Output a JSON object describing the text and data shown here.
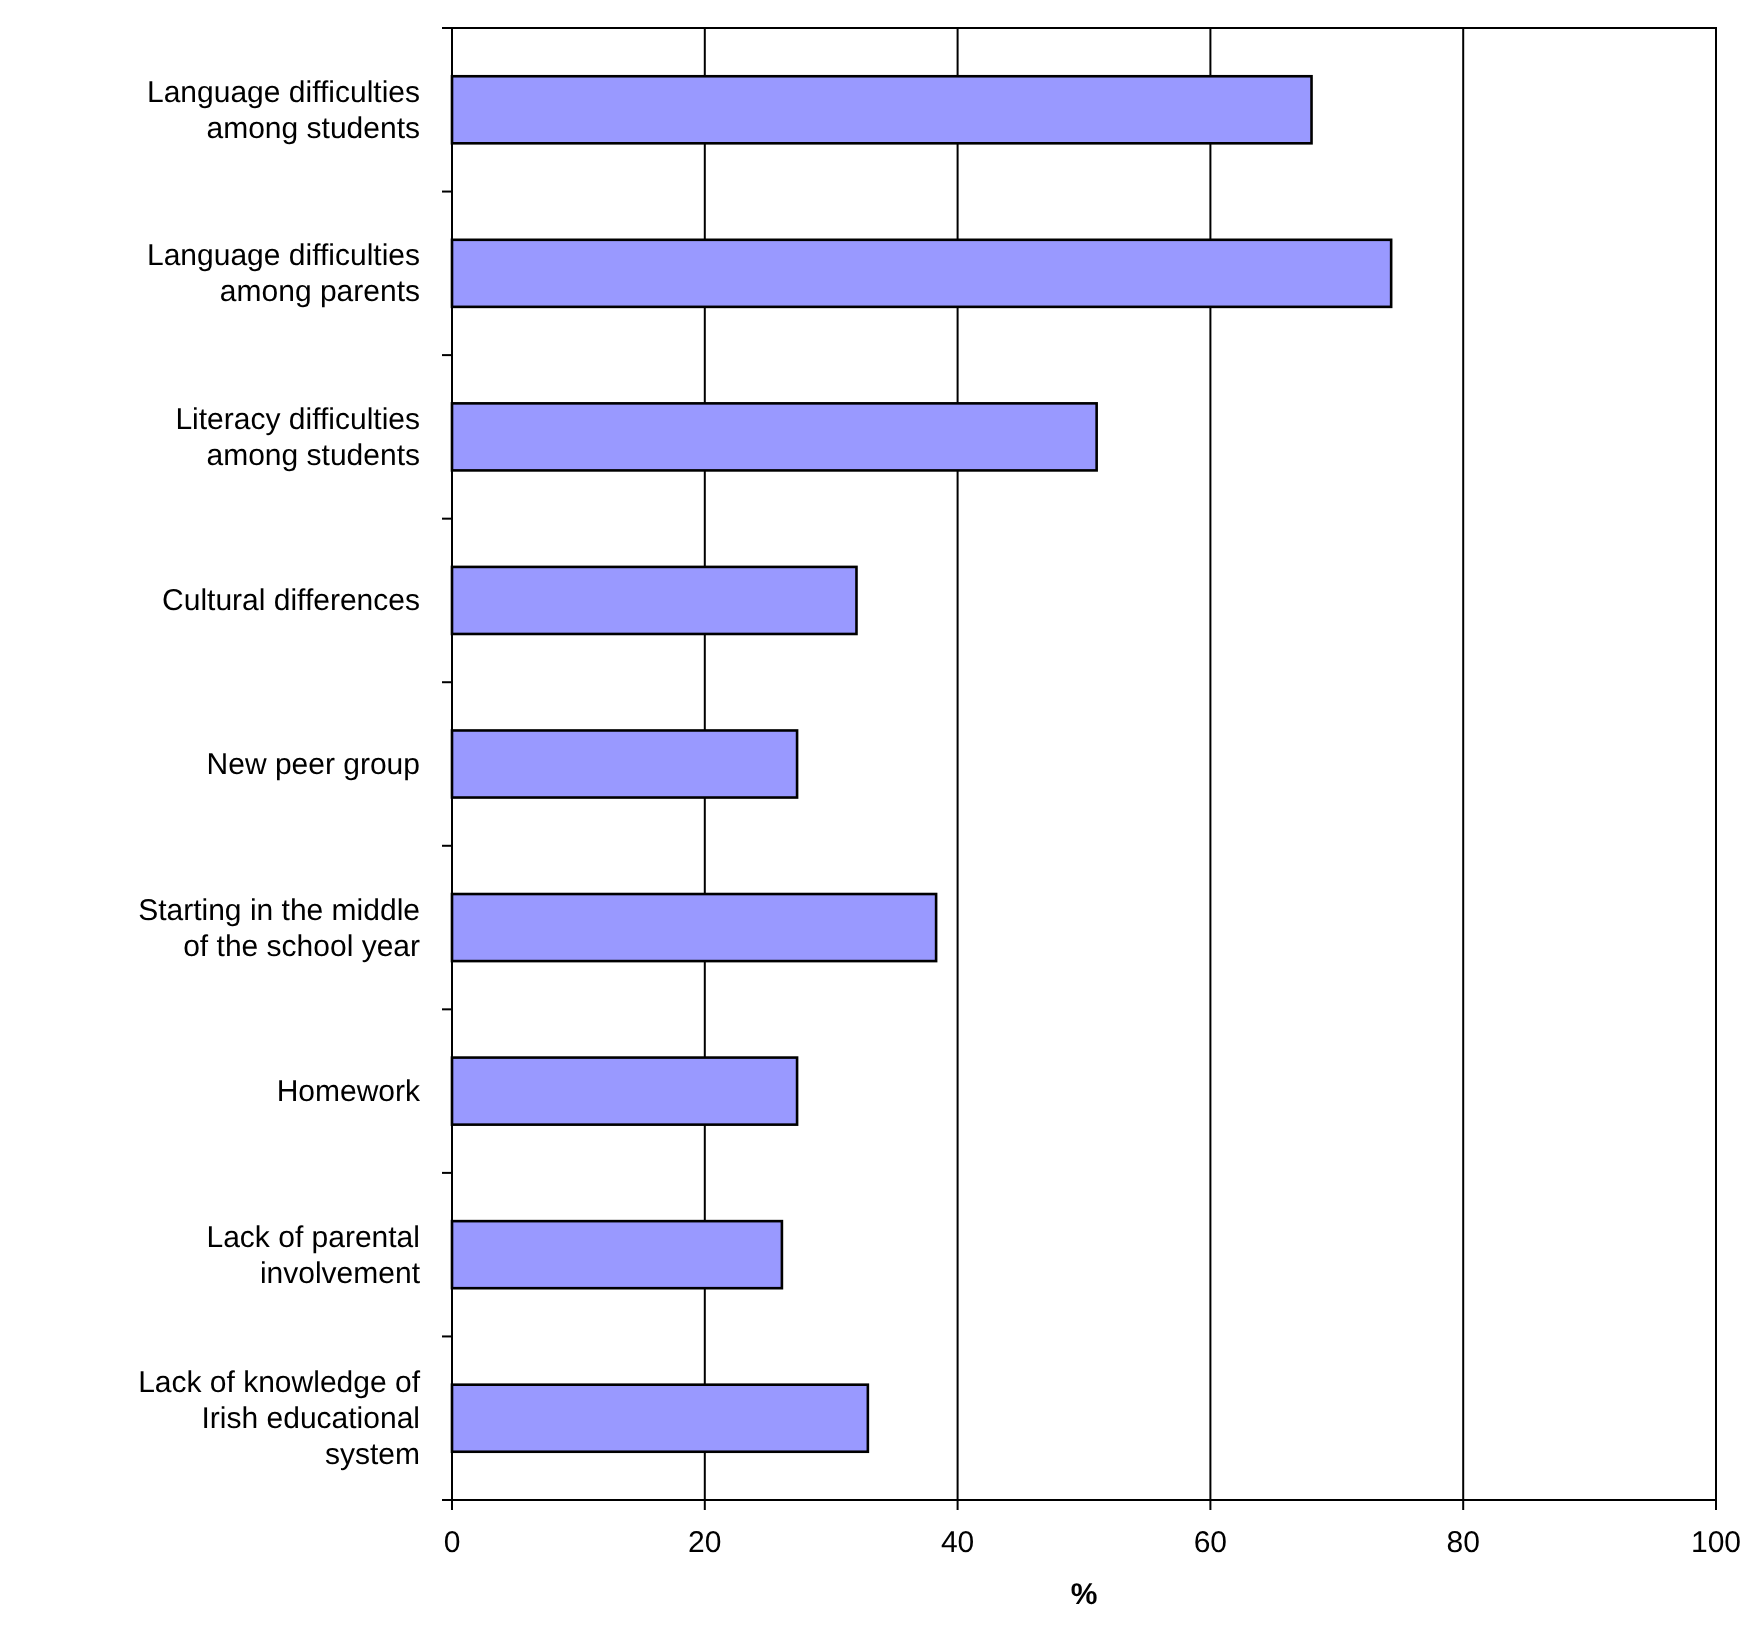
{
  "chart_data": {
    "type": "bar",
    "orientation": "horizontal",
    "xlabel": "%",
    "categories": [
      "Language difficulties among students",
      "Language difficulties among parents",
      "Literacy difficulties among students",
      "Cultural differences",
      "New peer group",
      "Starting in the middle of the school year",
      "Homework",
      "Lack of parental involvement",
      "Lack of knowledge of Irish educational system"
    ],
    "values": [
      68,
      74.3,
      51,
      32,
      27.3,
      38.3,
      27.3,
      26.1,
      32.9
    ],
    "color": "#9999ff",
    "xlim": [
      0,
      100
    ],
    "xticks": [
      0,
      20,
      40,
      60,
      80,
      100
    ],
    "grid": "x"
  }
}
